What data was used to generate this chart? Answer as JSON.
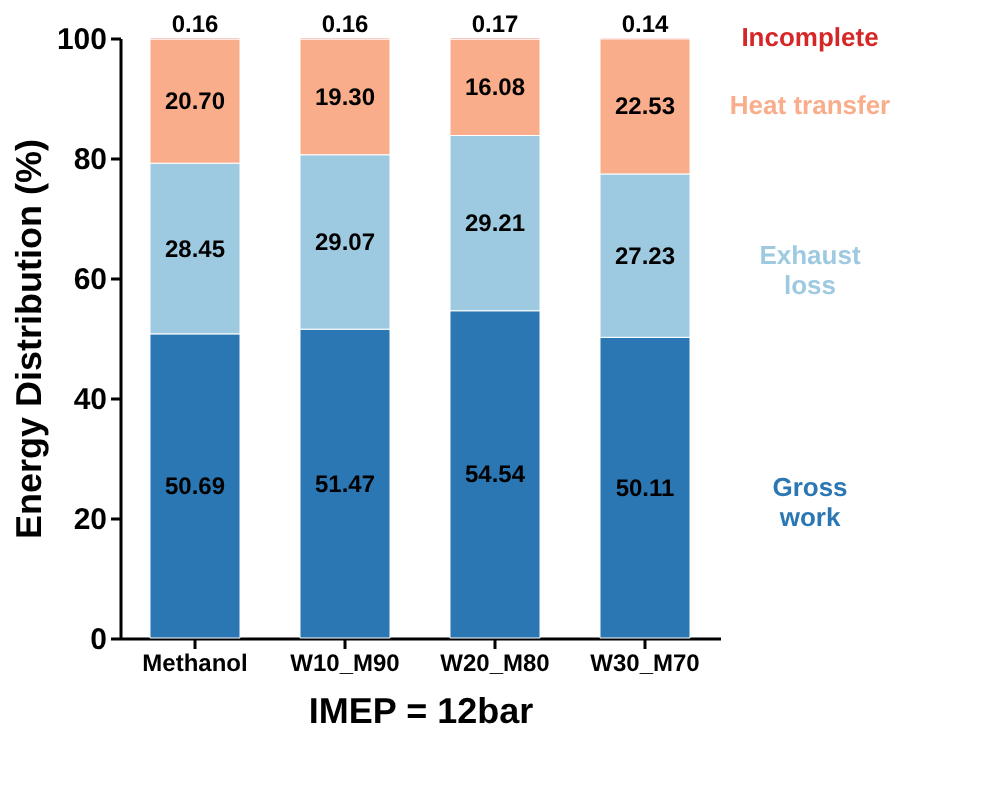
{
  "chart_data": {
    "type": "bar",
    "stacked": true,
    "xlabel": "IMEP = 12bar",
    "ylabel": "Energy Distribution (%)",
    "categories": [
      "Methanol",
      "W10_M90",
      "W20_M80",
      "W30_M70"
    ],
    "series": [
      {
        "name": "Gross\nwork",
        "color": "#2a77b4",
        "values": [
          50.69,
          51.47,
          54.54,
          50.11
        ],
        "value_labels": [
          "50.69",
          "51.47",
          "54.54",
          "50.11"
        ]
      },
      {
        "name": "Exhaust\nloss",
        "color": "#9ecae1",
        "values": [
          28.45,
          29.07,
          29.21,
          27.23
        ],
        "value_labels": [
          "28.45",
          "29.07",
          "29.21",
          "27.23"
        ]
      },
      {
        "name": "Heat transfer",
        "color": "#f9ad8a",
        "values": [
          20.7,
          19.3,
          16.08,
          22.53
        ],
        "value_labels": [
          "20.70",
          "19.30",
          "16.08",
          "22.53"
        ]
      },
      {
        "name": "Incomplete",
        "color": "#d62728",
        "values": [
          0.16,
          0.16,
          0.17,
          0.14
        ],
        "value_labels": [
          "0.16",
          "0.16",
          "0.17",
          "0.14"
        ]
      }
    ],
    "ylim": [
      0,
      100
    ],
    "yticks": [
      0,
      20,
      40,
      60,
      80,
      100
    ],
    "grid": false,
    "legend": "right"
  }
}
